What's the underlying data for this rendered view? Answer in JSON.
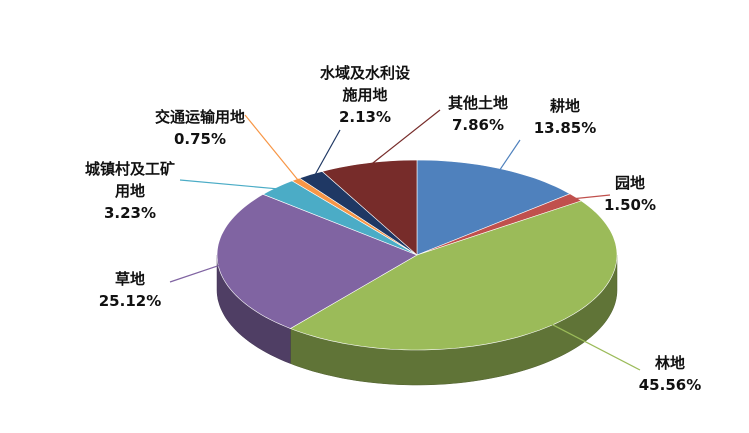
{
  "chart_data": {
    "type": "pie",
    "categories": [
      "耕地",
      "园地",
      "林地",
      "草地",
      "城镇村及工矿用地",
      "交通运输用地",
      "水域及水利设施用地",
      "其他土地"
    ],
    "values": [
      13.85,
      1.5,
      45.56,
      25.12,
      3.23,
      0.75,
      2.13,
      7.86
    ],
    "value_labels": [
      "13.85%",
      "1.50%",
      "45.56%",
      "25.12%",
      "3.23%",
      "0.75%",
      "2.13%",
      "7.86%"
    ],
    "colors": [
      "#4f81bd",
      "#c0504d",
      "#9bbb59",
      "#8064a2",
      "#4bacc6",
      "#f79646",
      "#1f3864",
      "#772c2a"
    ]
  }
}
